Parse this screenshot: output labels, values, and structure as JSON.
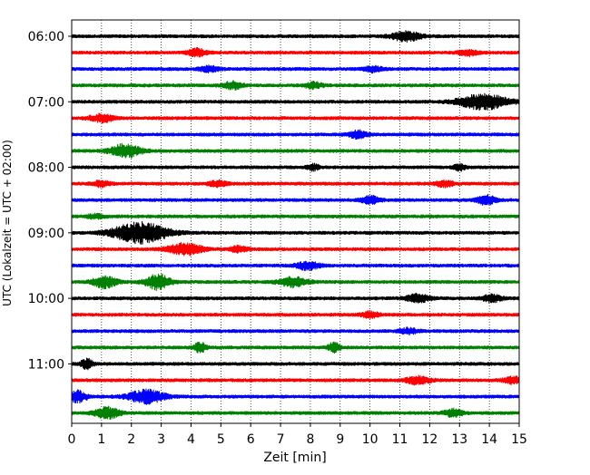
{
  "chart_data": {
    "type": "line",
    "title": "",
    "xlabel": "Zeit  [min]",
    "ylabel": "UTC (Lokalzeit = UTC + 02:00)",
    "xlim": [
      0,
      15
    ],
    "x_ticks": [
      "0",
      "1",
      "2",
      "3",
      "4",
      "5",
      "6",
      "7",
      "8",
      "9",
      "10",
      "11",
      "12",
      "13",
      "14",
      "15"
    ],
    "y_ticks": [
      "06:00",
      "07:00",
      "08:00",
      "09:00",
      "10:00",
      "11:00"
    ],
    "trace_interval_minutes": 15,
    "first_trace_time": "06:00",
    "grid": "vertical dotted at each minute",
    "series_colors": [
      "#000000",
      "#ff0000",
      "#0000ff",
      "#008000"
    ],
    "traces": [
      {
        "time": "06:00",
        "color": "#000000",
        "events": [
          [
            11.2,
            5,
            0.5
          ]
        ]
      },
      {
        "time": "06:15",
        "color": "#ff0000",
        "events": [
          [
            4.2,
            4,
            0.3
          ],
          [
            13.3,
            3,
            0.3
          ]
        ]
      },
      {
        "time": "06:30",
        "color": "#0000ff",
        "events": [
          [
            4.6,
            3,
            0.3
          ],
          [
            10.1,
            3,
            0.3
          ]
        ]
      },
      {
        "time": "06:45",
        "color": "#008000",
        "events": [
          [
            5.4,
            4,
            0.3
          ],
          [
            8.1,
            3,
            0.3
          ]
        ]
      },
      {
        "time": "07:00",
        "color": "#000000",
        "events": [
          [
            13.8,
            8,
            0.8
          ]
        ]
      },
      {
        "time": "07:15",
        "color": "#ff0000",
        "events": [
          [
            1.0,
            4,
            0.4
          ]
        ]
      },
      {
        "time": "07:30",
        "color": "#0000ff",
        "events": [
          [
            9.6,
            4,
            0.3
          ]
        ]
      },
      {
        "time": "07:45",
        "color": "#008000",
        "events": [
          [
            1.8,
            7,
            0.5
          ]
        ]
      },
      {
        "time": "08:00",
        "color": "#000000",
        "events": [
          [
            8.1,
            3,
            0.2
          ],
          [
            13.0,
            3,
            0.2
          ]
        ]
      },
      {
        "time": "08:15",
        "color": "#ff0000",
        "events": [
          [
            1.0,
            3,
            0.3
          ],
          [
            4.9,
            3,
            0.3
          ],
          [
            12.5,
            3,
            0.3
          ]
        ]
      },
      {
        "time": "08:30",
        "color": "#0000ff",
        "events": [
          [
            10.0,
            4,
            0.3
          ],
          [
            13.9,
            5,
            0.3
          ]
        ]
      },
      {
        "time": "08:45",
        "color": "#008000",
        "events": [
          [
            0.8,
            2,
            0.3
          ]
        ]
      },
      {
        "time": "09:00",
        "color": "#000000",
        "events": [
          [
            2.3,
            11,
            0.9
          ]
        ]
      },
      {
        "time": "09:15",
        "color": "#ff0000",
        "events": [
          [
            3.8,
            6,
            0.6
          ],
          [
            5.6,
            3,
            0.3
          ]
        ]
      },
      {
        "time": "09:30",
        "color": "#0000ff",
        "events": [
          [
            7.9,
            4,
            0.4
          ]
        ]
      },
      {
        "time": "09:45",
        "color": "#008000",
        "events": [
          [
            1.1,
            6,
            0.4
          ],
          [
            2.9,
            8,
            0.4
          ],
          [
            7.4,
            5,
            0.5
          ]
        ]
      },
      {
        "time": "10:00",
        "color": "#000000",
        "events": [
          [
            11.6,
            4,
            0.4
          ],
          [
            14.1,
            4,
            0.3
          ]
        ]
      },
      {
        "time": "10:15",
        "color": "#ff0000",
        "events": [
          [
            10.0,
            3,
            0.3
          ]
        ]
      },
      {
        "time": "10:30",
        "color": "#0000ff",
        "events": [
          [
            11.3,
            3,
            0.3
          ]
        ]
      },
      {
        "time": "10:45",
        "color": "#008000",
        "events": [
          [
            4.3,
            5,
            0.2
          ],
          [
            8.8,
            5,
            0.2
          ]
        ]
      },
      {
        "time": "11:00",
        "color": "#000000",
        "events": [
          [
            0.5,
            5,
            0.2
          ]
        ]
      },
      {
        "time": "11:15",
        "color": "#ff0000",
        "events": [
          [
            11.6,
            4,
            0.4
          ],
          [
            14.8,
            4,
            0.3
          ]
        ]
      },
      {
        "time": "11:30",
        "color": "#0000ff",
        "events": [
          [
            0.2,
            6,
            0.3
          ],
          [
            2.5,
            7,
            0.6
          ]
        ]
      },
      {
        "time": "11:45",
        "color": "#008000",
        "events": [
          [
            1.2,
            6,
            0.4
          ],
          [
            12.8,
            4,
            0.3
          ]
        ]
      }
    ]
  }
}
